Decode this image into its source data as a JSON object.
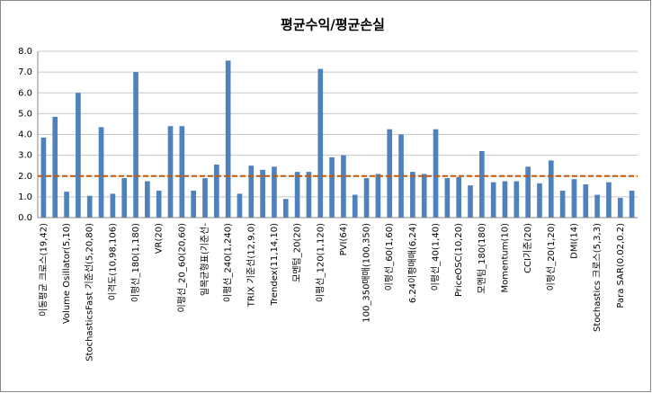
{
  "chart_data": {
    "type": "bar",
    "title": "평균수익/평균손실",
    "categories": [
      "이동평균 크로스(19,42)",
      null,
      "Volume Osillator(5,10)",
      null,
      "StochasticsFast 기준선(5,20,80)",
      null,
      "이격도(10,98,106)",
      null,
      "이평선_180(1,180)",
      null,
      "VR(20)",
      null,
      "이평선_20_60(20,60)",
      null,
      "일목균형표(기준선-",
      null,
      "이평선_240(1,240)",
      null,
      "TRIX 기준선(12,9,0)",
      null,
      "Trendex(11,14,10)",
      null,
      "모멘텀_20(20)",
      null,
      "이평선_120(1,120)",
      null,
      "PVI(64)",
      null,
      "100_350매매(100,350)",
      null,
      "이평선_60(1,60)",
      null,
      "6.24이평매매(6,24)",
      null,
      "이평선_40(1,40)",
      null,
      "PriceOSC(10,20)",
      null,
      "모멘텀_180(180)",
      null,
      "Momentum(10)",
      null,
      "CCI기준(20)",
      null,
      "이평선_20(1,20)",
      null,
      "DMI(14)",
      null,
      "Stochastics 크로스(5,3,3)",
      null,
      "Para SAR(0.02,0.2)",
      null
    ],
    "values": [
      3.85,
      4.85,
      1.25,
      6.0,
      1.05,
      4.35,
      1.15,
      1.9,
      7.0,
      1.75,
      1.3,
      4.4,
      4.4,
      1.3,
      1.9,
      2.55,
      7.55,
      1.15,
      2.5,
      2.3,
      2.45,
      0.9,
      2.2,
      2.2,
      7.15,
      2.9,
      3.0,
      1.1,
      1.9,
      2.1,
      4.25,
      4.0,
      2.2,
      2.1,
      4.25,
      1.9,
      1.95,
      1.55,
      3.2,
      1.7,
      1.75,
      1.75,
      2.45,
      1.65,
      2.75,
      1.3,
      1.85,
      1.6,
      1.1,
      1.7,
      0.95,
      1.3
    ],
    "color": "#4f81bd",
    "reference_line": 2.0,
    "reference_color": "#c0580a",
    "ylim": [
      0,
      8
    ],
    "yticks": [
      {
        "value": 0,
        "label": "0.0"
      },
      {
        "value": 1,
        "label": "1.0"
      },
      {
        "value": 2,
        "label": "2.0"
      },
      {
        "value": 3,
        "label": "3.0"
      },
      {
        "value": 4,
        "label": "4.0"
      },
      {
        "value": 5,
        "label": "5.0"
      },
      {
        "value": 6,
        "label": "6.0"
      },
      {
        "value": 7,
        "label": "7.0"
      },
      {
        "value": 8,
        "label": "8.0"
      }
    ],
    "grid": true
  }
}
